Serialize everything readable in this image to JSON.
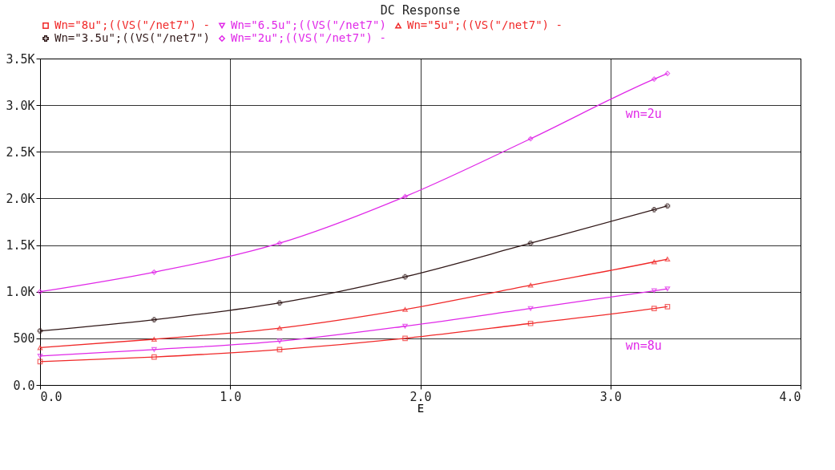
{
  "chart_data": {
    "type": "line",
    "title": "DC Response",
    "xlabel": "E",
    "xlim": [
      0,
      4
    ],
    "xticks": [
      {
        "value": 0,
        "label": "0.0"
      },
      {
        "value": 1,
        "label": "1.0"
      },
      {
        "value": 2,
        "label": "2.0"
      },
      {
        "value": 3,
        "label": "3.0"
      },
      {
        "value": 4,
        "label": "4.0"
      }
    ],
    "ylim": [
      0,
      3500
    ],
    "yticks": [
      {
        "value": 0,
        "label": "0.0"
      },
      500,
      {
        "value": 1000,
        "label": "1.0K"
      },
      {
        "value": 1500,
        "label": "1.5K"
      },
      {
        "value": 2000,
        "label": "2.0K"
      },
      {
        "value": 2500,
        "label": "2.5K"
      },
      {
        "value": 3000,
        "label": "3.0K"
      },
      {
        "value": 3500,
        "label": "3.5K"
      }
    ],
    "grid": true,
    "legend": "top",
    "line_style": "solid",
    "x": [
      0,
      0.6,
      1.26,
      1.92,
      2.58,
      3.23,
      3.3
    ],
    "series": [
      {
        "name": "Wn=\"8u\";((VS(\"/net7\") -",
        "color": "#f02828",
        "marker": "square",
        "values": [
          250,
          300,
          380,
          500,
          660,
          820,
          840
        ]
      },
      {
        "name": "Wn=\"6.5u\";((VS(\"/net7\")",
        "color": "#e028e8",
        "marker": "triangle-down",
        "values": [
          310,
          380,
          470,
          630,
          820,
          1010,
          1030
        ]
      },
      {
        "name": "Wn=\"5u\";((VS(\"/net7\") -",
        "color": "#f02828",
        "marker": "triangle",
        "values": [
          400,
          490,
          610,
          810,
          1070,
          1320,
          1350
        ]
      },
      {
        "name": "Wn=\"3.5u\";((VS(\"/net7\")",
        "color": "#301818",
        "marker": "cross",
        "values": [
          580,
          700,
          880,
          1160,
          1520,
          1880,
          1920
        ]
      },
      {
        "name": "Wn=\"2u\";((VS(\"/net7\") -",
        "color": "#e028e8",
        "marker": "diamond",
        "values": [
          1000,
          1210,
          1520,
          2020,
          2640,
          3280,
          3340
        ]
      }
    ],
    "annotations": [
      "wn=2u",
      "wn=8u"
    ]
  }
}
